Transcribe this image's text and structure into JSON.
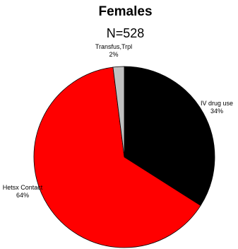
{
  "chart_data": {
    "type": "pie",
    "title": "Females",
    "subtitle": "N=528",
    "slices": [
      {
        "label": "IV drug use",
        "value": 34,
        "display": "34%",
        "color": "#000000"
      },
      {
        "label": "Hetsx Contact",
        "value": 64,
        "display": "64%",
        "color": "#ff0000"
      },
      {
        "label": "Transfus,Trpl",
        "value": 2,
        "display": "2%",
        "color": "#c0c0c0"
      }
    ],
    "start_angle": "12 o'clock",
    "direction": "clockwise",
    "legend": "none",
    "slice_border_color": "#000000"
  }
}
